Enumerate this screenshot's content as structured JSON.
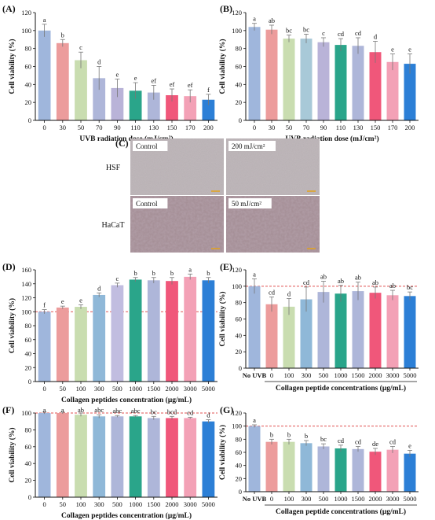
{
  "colors": {
    "A": [
      "#9fb6dc",
      "#ec9c9c",
      "#c9ddb0",
      "#aeb6d9",
      "#b9b3d8",
      "#2aa58a",
      "#aeb6d9",
      "#f0577a",
      "#f3a1b6",
      "#2c7fd6"
    ],
    "B": [
      "#9fb6dc",
      "#ec9c9c",
      "#c9ddb0",
      "#a8c9d8",
      "#b9b3d8",
      "#2aa58a",
      "#aeb6d9",
      "#f0577a",
      "#f3a1b6",
      "#2c7fd6"
    ],
    "D": [
      "#9fb6dc",
      "#ec9c9c",
      "#c9ddb0",
      "#8fb8d8",
      "#c1bde0",
      "#2aa58a",
      "#aeb6d9",
      "#f0577a",
      "#f3a1b6",
      "#2c7fd6"
    ],
    "E": [
      "#9fb6dc",
      "#ec9c9c",
      "#c9ddb0",
      "#8fb8d8",
      "#aeb6d9",
      "#2aa58a",
      "#aeb6d9",
      "#f0577a",
      "#f3a1b6",
      "#2c7fd6"
    ],
    "F": [
      "#9fb6dc",
      "#ec9c9c",
      "#c9ddb0",
      "#8fb8d8",
      "#aeb6d9",
      "#2aa58a",
      "#aeb6d9",
      "#f0577a",
      "#f3a1b6",
      "#2c7fd6"
    ],
    "G": [
      "#9fb6dc",
      "#ec9c9c",
      "#c9ddb0",
      "#8fb8d8",
      "#aeb6d9",
      "#2aa58a",
      "#aeb6d9",
      "#f0577a",
      "#f3a1b6",
      "#2c7fd6"
    ],
    "reference_line": "#e05252"
  },
  "panel_c": {
    "label": "(C)",
    "rows": [
      {
        "name": "HSF",
        "images": [
          "Control",
          "200 mJ/cm²"
        ]
      },
      {
        "name": "HaCaT",
        "images": [
          "Control",
          "50 mJ/cm²"
        ]
      }
    ]
  },
  "chart_data": [
    {
      "id": "A",
      "label": "(A)",
      "type": "bar",
      "categories": [
        "0",
        "30",
        "50",
        "70",
        "90",
        "110",
        "130",
        "150",
        "170",
        "200"
      ],
      "values": [
        100,
        86,
        67,
        47,
        36,
        33,
        31,
        28,
        27,
        23
      ],
      "errors": [
        7,
        4,
        9,
        13,
        10,
        9,
        8,
        7,
        7,
        6
      ],
      "letters": [
        "a",
        "b",
        "c",
        "d",
        "e",
        "e",
        "ef",
        "ef",
        "ef",
        "f"
      ],
      "ylim": [
        0,
        120
      ],
      "yticks": [
        0,
        20,
        40,
        60,
        80,
        100,
        120
      ],
      "ylabel": "Cell viability (%)",
      "xlabel": "UVB radiation dose (mJ/cm²)",
      "grid": false
    },
    {
      "id": "B",
      "label": "(B)",
      "type": "bar",
      "categories": [
        "0",
        "30",
        "50",
        "70",
        "90",
        "110",
        "130",
        "150",
        "170",
        "200"
      ],
      "values": [
        104,
        101,
        91,
        91,
        87,
        84,
        83,
        76,
        65,
        63
      ],
      "errors": [
        4,
        5,
        4,
        5,
        5,
        7,
        9,
        12,
        9,
        11
      ],
      "letters": [
        "a",
        "ab",
        "bc",
        "bc",
        "c",
        "cd",
        "cd",
        "d",
        "e",
        "e"
      ],
      "ylim": [
        0,
        120
      ],
      "yticks": [
        0,
        20,
        40,
        60,
        80,
        100,
        120
      ],
      "ylabel": "Cell viability (%)",
      "xlabel": "UVB radiation dose (mJ/cm²)",
      "grid": false
    },
    {
      "id": "D",
      "label": "(D)",
      "type": "bar",
      "categories": [
        "0",
        "50",
        "100",
        "300",
        "500",
        "1000",
        "1500",
        "2000",
        "3000",
        "5000"
      ],
      "values": [
        100,
        106,
        107,
        124,
        138,
        146,
        145,
        144,
        150,
        145
      ],
      "errors": [
        3,
        2,
        3,
        3,
        3,
        3,
        4,
        5,
        4,
        4
      ],
      "letters": [
        "f",
        "e",
        "e",
        "d",
        "c",
        "b",
        "b",
        "b",
        "a",
        "b"
      ],
      "ylim": [
        0,
        160
      ],
      "yticks": [
        0,
        20,
        40,
        60,
        80,
        100,
        120,
        140,
        160
      ],
      "ylabel": "Cell viability (%)",
      "xlabel": "Collagen peptides concentration (μg/mL)",
      "reference_line": 100,
      "grid": false
    },
    {
      "id": "E",
      "label": "(E)",
      "type": "bar",
      "categories": [
        "No UVB",
        "0",
        "100",
        "300",
        "500",
        "1000",
        "1500",
        "2000",
        "3000",
        "5000"
      ],
      "values": [
        100,
        78,
        75,
        84,
        93,
        91,
        94,
        92,
        89,
        88
      ],
      "errors": [
        9,
        9,
        10,
        15,
        13,
        10,
        11,
        7,
        6,
        5
      ],
      "letters": [
        "a",
        "cd",
        "d",
        "cd",
        "ab",
        "ab",
        "ab",
        "ab",
        "ab",
        "bc"
      ],
      "ylim": [
        0,
        120
      ],
      "yticks": [
        0,
        20,
        40,
        60,
        80,
        100,
        120
      ],
      "ylabel": "Cell viability (%)",
      "xlabel": "Collagen peptide concentrations (μg/mL)",
      "reference_line": 100,
      "grid": false
    },
    {
      "id": "F",
      "label": "(F)",
      "type": "bar",
      "categories": [
        "0",
        "50",
        "100",
        "300",
        "500",
        "1000",
        "1500",
        "2000",
        "3000",
        "5000"
      ],
      "values": [
        100,
        100,
        98,
        96,
        96,
        96,
        94,
        94,
        94,
        90
      ],
      "errors": [
        1,
        1,
        2,
        2,
        1,
        1,
        2,
        2,
        1,
        2
      ],
      "letters": [
        "a",
        "a",
        "ab",
        "abc",
        "abc",
        "abc",
        "bc",
        "bcd",
        "cd",
        "d"
      ],
      "ylim": [
        0,
        100
      ],
      "yticks": [
        0,
        20,
        40,
        60,
        80,
        100
      ],
      "ylabel": "Cell viability (%)",
      "xlabel": "Collagen peptides concentration (μg/mL)",
      "reference_line": 100,
      "grid": false
    },
    {
      "id": "G",
      "label": "(G)",
      "type": "bar",
      "categories": [
        "No UVB",
        "0",
        "100",
        "300",
        "500",
        "1000",
        "1500",
        "2000",
        "3000",
        "5000"
      ],
      "values": [
        100,
        76,
        76,
        74,
        69,
        66,
        65,
        61,
        64,
        58
      ],
      "errors": [
        2,
        4,
        4,
        4,
        4,
        5,
        4,
        5,
        5,
        5
      ],
      "letters": [
        "a",
        "b",
        "b",
        "b",
        "bc",
        "cd",
        "cd",
        "de",
        "cd",
        "e"
      ],
      "ylim": [
        0,
        120
      ],
      "yticks": [
        0,
        20,
        40,
        60,
        80,
        100,
        120
      ],
      "ylabel": "Cell viability (%)",
      "xlabel": "Collagen peptide concentrations (μg/mL)",
      "reference_line": 100,
      "grid": false
    }
  ]
}
